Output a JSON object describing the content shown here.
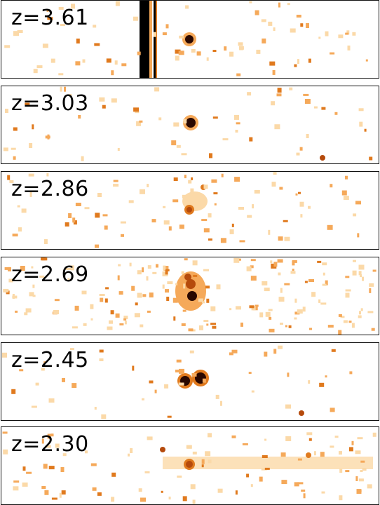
{
  "panels": [
    {
      "label": "z=3.61"
    },
    {
      "label": "z=3.03"
    },
    {
      "label": "z=2.86"
    },
    {
      "label": "z=2.69"
    },
    {
      "label": "z=2.45"
    },
    {
      "label": "z=2.30"
    }
  ],
  "colors": {
    "light": "#fbd9a8",
    "medium": "#f5a95a",
    "strong": "#e07a1e",
    "deep": "#b54a0c",
    "core": "#2a0800",
    "frame": "#111111"
  }
}
